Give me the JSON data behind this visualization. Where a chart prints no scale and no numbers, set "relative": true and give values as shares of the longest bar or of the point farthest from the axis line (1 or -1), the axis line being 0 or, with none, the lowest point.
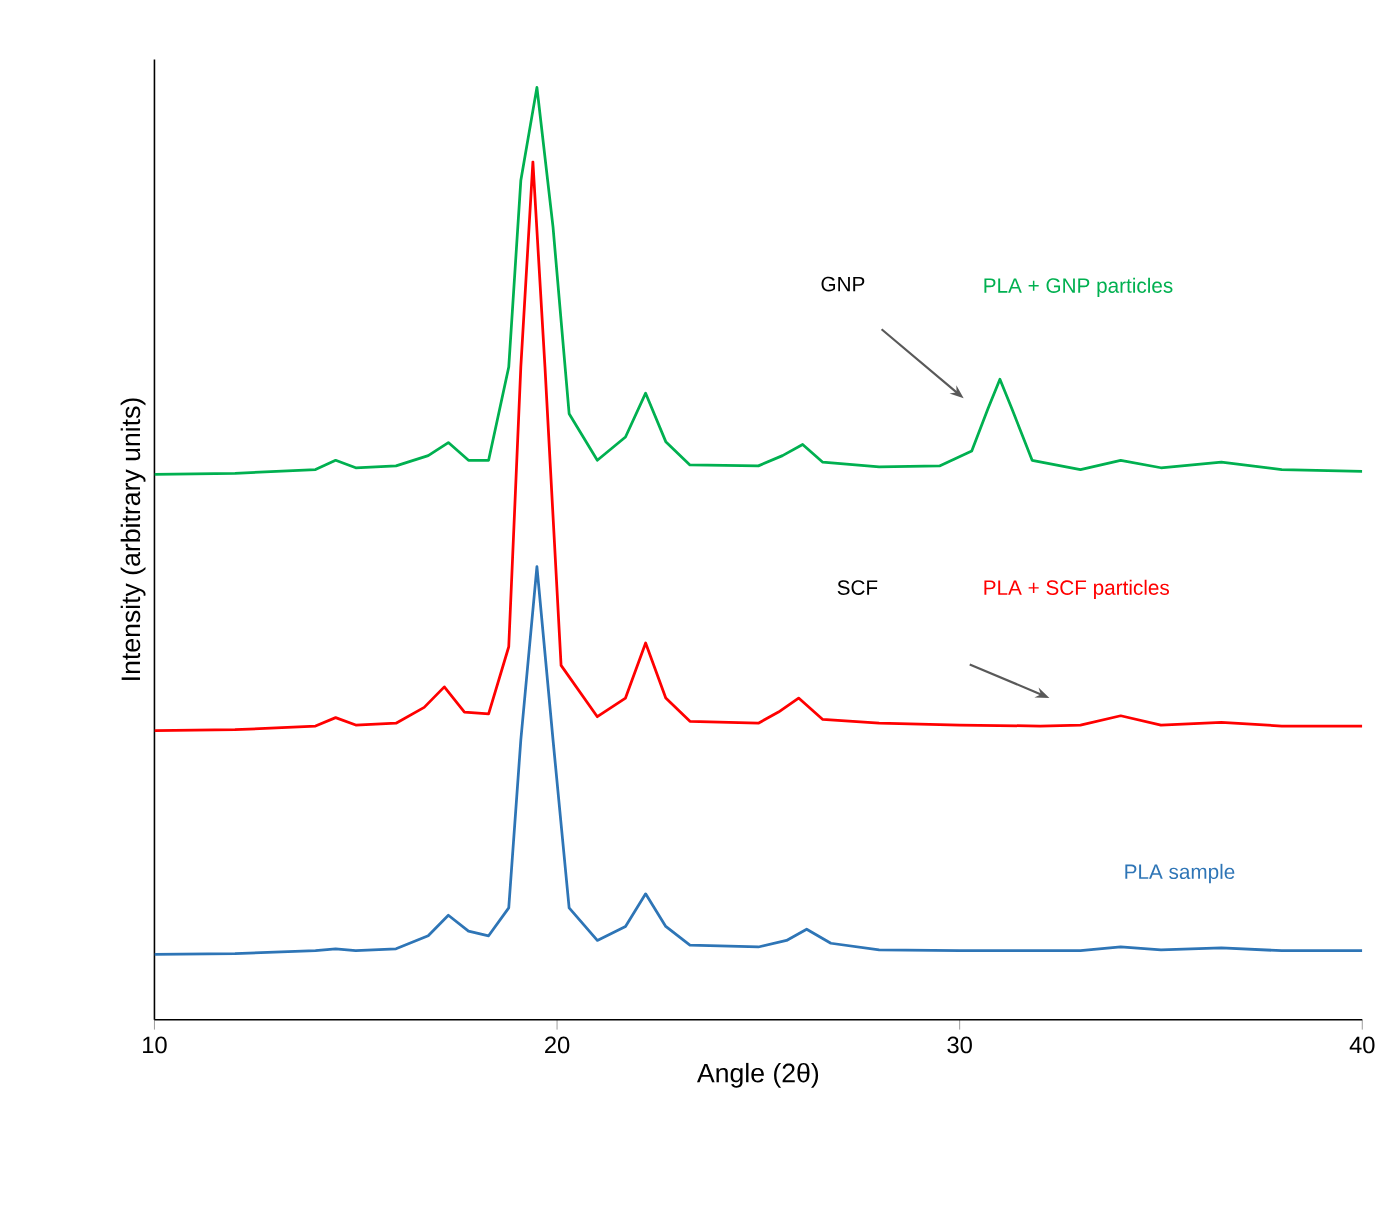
{
  "chart_data": {
    "type": "line",
    "relative": true,
    "xlabel": "Angle (2θ)",
    "ylabel": "Intensity (arbitrary units)",
    "xlim": [
      10,
      40
    ],
    "xticks": [
      10,
      20,
      30,
      40
    ],
    "tick_labels": "x",
    "legend": false,
    "series": [
      {
        "name": "PLA + GNP particles",
        "color": "#00b050",
        "x": [
          10,
          12,
          14,
          14.5,
          15,
          16,
          16.8,
          17.3,
          17.8,
          18.3,
          18.8,
          19.1,
          19.5,
          19.9,
          20.3,
          21,
          21.7,
          22.2,
          22.7,
          23.3,
          25,
          25.6,
          26.1,
          26.6,
          28,
          29.5,
          30.3,
          30.7,
          31,
          31.3,
          31.8,
          33,
          34,
          35,
          36.5,
          38,
          40
        ],
        "values": [
          0.585,
          0.586,
          0.59,
          0.6,
          0.592,
          0.594,
          0.605,
          0.619,
          0.6,
          0.6,
          0.7,
          0.9,
          1.0,
          0.85,
          0.65,
          0.6,
          0.625,
          0.672,
          0.62,
          0.595,
          0.594,
          0.605,
          0.617,
          0.598,
          0.593,
          0.594,
          0.61,
          0.655,
          0.687,
          0.655,
          0.6,
          0.59,
          0.6,
          0.592,
          0.598,
          0.59,
          0.588
        ]
      },
      {
        "name": "PLA + SCF particles",
        "color": "#ff0000",
        "x": [
          10,
          12,
          14,
          14.5,
          15,
          16,
          16.7,
          17.2,
          17.7,
          18.3,
          18.8,
          19.1,
          19.4,
          19.7,
          20.1,
          21,
          21.7,
          22.2,
          22.7,
          23.3,
          25,
          25.5,
          26,
          26.6,
          28,
          30,
          32,
          33,
          34,
          35,
          36.5,
          38,
          40
        ],
        "values": [
          0.31,
          0.311,
          0.315,
          0.324,
          0.316,
          0.318,
          0.335,
          0.357,
          0.33,
          0.328,
          0.4,
          0.7,
          0.92,
          0.7,
          0.38,
          0.325,
          0.345,
          0.404,
          0.345,
          0.32,
          0.318,
          0.33,
          0.345,
          0.322,
          0.318,
          0.316,
          0.315,
          0.316,
          0.326,
          0.316,
          0.319,
          0.315,
          0.315
        ]
      },
      {
        "name": "PLA sample",
        "color": "#2e75b6",
        "x": [
          10,
          12,
          14,
          14.5,
          15,
          16,
          16.8,
          17.3,
          17.8,
          18.3,
          18.8,
          19.1,
          19.5,
          19.9,
          20.3,
          21,
          21.7,
          22.2,
          22.7,
          23.3,
          25,
          25.7,
          26.2,
          26.8,
          28,
          30,
          33,
          34,
          35,
          36.5,
          38,
          40
        ],
        "values": [
          0.07,
          0.071,
          0.074,
          0.076,
          0.074,
          0.076,
          0.09,
          0.112,
          0.095,
          0.09,
          0.12,
          0.3,
          0.486,
          0.3,
          0.12,
          0.085,
          0.1,
          0.135,
          0.1,
          0.08,
          0.078,
          0.085,
          0.097,
          0.082,
          0.075,
          0.074,
          0.074,
          0.078,
          0.075,
          0.077,
          0.074,
          0.074
        ]
      }
    ],
    "annotations": [
      "GNP",
      "SCF"
    ]
  }
}
